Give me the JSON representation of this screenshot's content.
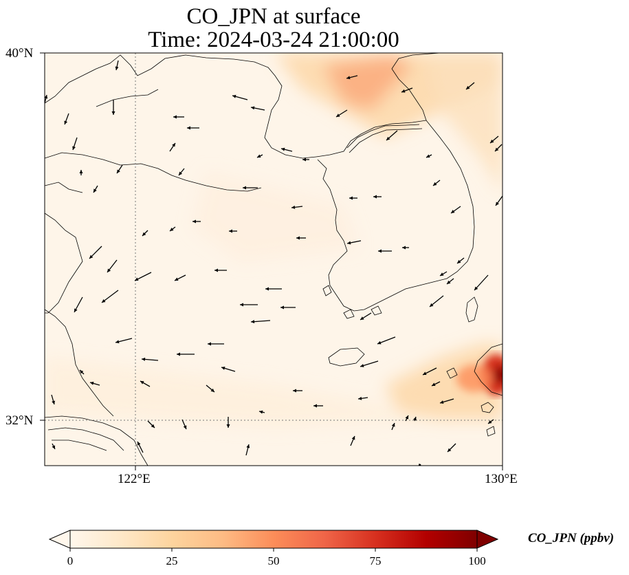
{
  "title": {
    "line1": "CO_JPN at surface",
    "line2": "Time: 2024-03-24 21:00:00"
  },
  "axes": {
    "lat_labels": [
      "40°N",
      "32°N"
    ],
    "lon_labels": [
      "122°E",
      "130°E"
    ],
    "lon_range": [
      120,
      130
    ],
    "lat_range": [
      31,
      40
    ],
    "gridlines": {
      "lon": 122,
      "lat": 32,
      "style": "dotted"
    }
  },
  "colorbar": {
    "unit_label": "CO_JPN (ppbv)",
    "ticks": [
      "0",
      "25",
      "50",
      "75",
      "100"
    ],
    "range": [
      0,
      100
    ],
    "extend": "both",
    "colormap": "OrRd",
    "colors": [
      "#fff7ec",
      "#fee8c8",
      "#fdd49e",
      "#fdbb84",
      "#fc8d59",
      "#ef6548",
      "#d7301f",
      "#b30000",
      "#7f0000"
    ]
  },
  "map": {
    "background_color": "#fff5e8",
    "coastline_color": "#000000"
  }
}
